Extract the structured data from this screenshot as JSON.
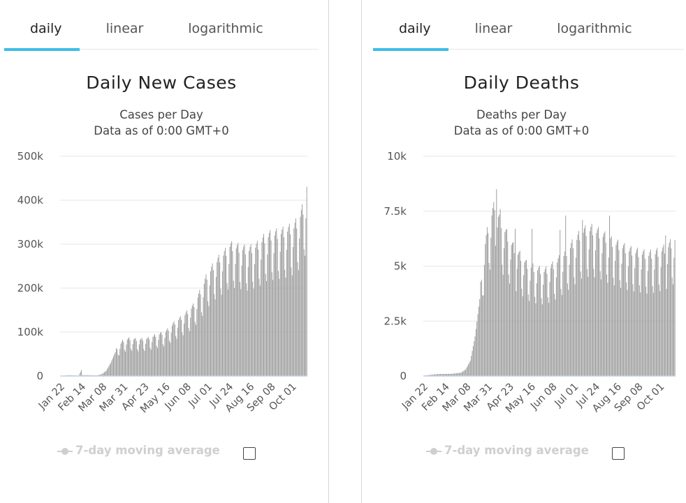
{
  "colors": {
    "accent": "#3bbde8",
    "bar": "#9a9a9a",
    "grid": "#e6e6e6",
    "legend": "#cfcfcf"
  },
  "left": {
    "tabs": [
      "daily",
      "linear",
      "logarithmic"
    ],
    "active_tab": "daily",
    "legend_label": "7-day moving average",
    "legend_checked": false
  },
  "right": {
    "tabs": [
      "daily",
      "linear",
      "logarithmic"
    ],
    "active_tab": "daily",
    "legend_label": "7-day moving average",
    "legend_checked": false
  },
  "chart_data": [
    {
      "type": "bar",
      "title": "Daily New Cases",
      "subtitle": [
        "Cases per Day",
        "Data as of 0:00 GMT+0"
      ],
      "ylim": [
        0,
        500000
      ],
      "yticks": [
        0,
        100000,
        200000,
        300000,
        400000,
        500000
      ],
      "ytick_labels": [
        "0",
        "100k",
        "200k",
        "300k",
        "400k",
        "500k"
      ],
      "xtick_labels": [
        "Jan 22",
        "Feb 14",
        "Mar 08",
        "Mar 31",
        "Apr 23",
        "May 16",
        "Jun 08",
        "Jul 01",
        "Jul 24",
        "Aug 16",
        "Sep 08",
        "Oct 01"
      ],
      "x_start": "2020-01-22",
      "anchors": [
        [
          0,
          500
        ],
        [
          10,
          2000
        ],
        [
          20,
          1000
        ],
        [
          23,
          14000
        ],
        [
          24,
          2000
        ],
        [
          30,
          2000
        ],
        [
          40,
          1500
        ],
        [
          45,
          4000
        ],
        [
          50,
          12000
        ],
        [
          55,
          30000
        ],
        [
          60,
          55000
        ],
        [
          64,
          65000
        ],
        [
          68,
          75000
        ],
        [
          75,
          80000
        ],
        [
          85,
          78000
        ],
        [
          95,
          80000
        ],
        [
          105,
          88000
        ],
        [
          115,
          95000
        ],
        [
          125,
          115000
        ],
        [
          135,
          130000
        ],
        [
          145,
          150000
        ],
        [
          155,
          190000
        ],
        [
          160,
          215000
        ],
        [
          170,
          245000
        ],
        [
          180,
          265000
        ],
        [
          185,
          280000
        ],
        [
          195,
          275000
        ],
        [
          205,
          270000
        ],
        [
          215,
          280000
        ],
        [
          225,
          300000
        ],
        [
          235,
          305000
        ],
        [
          245,
          310000
        ],
        [
          255,
          320000
        ],
        [
          260,
          335000
        ],
        [
          265,
          360000
        ],
        [
          268,
          390000
        ],
        [
          269,
          410000
        ]
      ]
    },
    {
      "type": "bar",
      "title": "Daily Deaths",
      "subtitle": [
        "Deaths per Day",
        "Data as of 0:00 GMT+0"
      ],
      "ylim": [
        0,
        10000
      ],
      "yticks": [
        0,
        2500,
        5000,
        7500,
        10000
      ],
      "ytick_labels": [
        "0",
        "2.5k",
        "5k",
        "7.5k",
        "10k"
      ],
      "xtick_labels": [
        "Jan 22",
        "Feb 14",
        "Mar 08",
        "Mar 31",
        "Apr 23",
        "May 16",
        "Jun 08",
        "Jul 01",
        "Jul 24",
        "Aug 16",
        "Sep 08",
        "Oct 01"
      ],
      "x_start": "2020-01-22",
      "anchors": [
        [
          0,
          20
        ],
        [
          15,
          90
        ],
        [
          30,
          100
        ],
        [
          40,
          150
        ],
        [
          45,
          300
        ],
        [
          50,
          700
        ],
        [
          55,
          1800
        ],
        [
          60,
          3500
        ],
        [
          65,
          5500
        ],
        [
          70,
          6600
        ],
        [
          75,
          7200
        ],
        [
          78,
          7800
        ],
        [
          80,
          6900
        ],
        [
          85,
          6400
        ],
        [
          90,
          6000
        ],
        [
          95,
          5600
        ],
        [
          100,
          5300
        ],
        [
          105,
          5100
        ],
        [
          110,
          4800
        ],
        [
          120,
          4600
        ],
        [
          130,
          4500
        ],
        [
          140,
          4800
        ],
        [
          150,
          5200
        ],
        [
          160,
          5700
        ],
        [
          170,
          6200
        ],
        [
          180,
          6300
        ],
        [
          190,
          6100
        ],
        [
          200,
          5800
        ],
        [
          210,
          5600
        ],
        [
          220,
          5400
        ],
        [
          230,
          5300
        ],
        [
          240,
          5200
        ],
        [
          250,
          5300
        ],
        [
          260,
          5500
        ],
        [
          265,
          5700
        ],
        [
          269,
          5900
        ]
      ],
      "spikes": [
        [
          78,
          8500
        ],
        [
          82,
          7600
        ],
        [
          98,
          6700
        ],
        [
          116,
          6700
        ],
        [
          146,
          6650
        ],
        [
          152,
          7300
        ],
        [
          170,
          7100
        ],
        [
          199,
          7300
        ],
        [
          259,
          6400
        ]
      ]
    }
  ]
}
